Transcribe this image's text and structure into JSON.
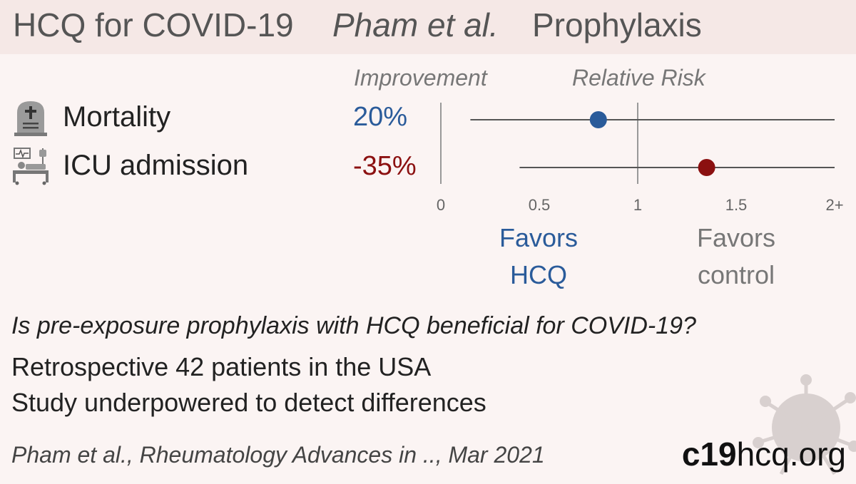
{
  "header": {
    "title": "HCQ for COVID-19",
    "study": "Pham et al.",
    "topic": "Prophylaxis"
  },
  "columns": {
    "improvement": "Improvement",
    "relative_risk": "Relative Risk"
  },
  "outcomes": [
    {
      "icon": "tombstone-icon",
      "label": "Mortality",
      "improvement": "20%"
    },
    {
      "icon": "icu-bed-icon",
      "label": "ICU admission",
      "improvement": "-35%"
    }
  ],
  "chart_data": {
    "type": "forest",
    "xlim": [
      0,
      2
    ],
    "ticks": [
      "0",
      "0.5",
      "1",
      "1.5",
      "2+"
    ],
    "reference_line": 1,
    "rows": [
      {
        "outcome": "Mortality",
        "rr": 0.8,
        "ci": [
          0.15,
          2.0
        ],
        "color": "#2a5b9a"
      },
      {
        "outcome": "ICU admission",
        "rr": 1.35,
        "ci": [
          0.4,
          2.0
        ],
        "color": "#8b1010"
      }
    ],
    "favors_left": [
      "Favors",
      "HCQ"
    ],
    "favors_right": [
      "Favors",
      "control"
    ]
  },
  "colors": {
    "favor_hcq": "#2a5b9a",
    "favor_control": "#8b1010",
    "neutral_text": "#777777",
    "header_bg": "#f5e8e6",
    "background": "#fbf4f3"
  },
  "summary": {
    "question": "Is pre-exposure prophylaxis with HCQ beneficial for COVID-19?",
    "design": "Retrospective 42 patients in the USA",
    "note": "Study underpowered to detect differences"
  },
  "citation": "Pham et al., Rheumatology Advances in .., Mar 2021",
  "brand": {
    "bold": "c19",
    "rest": "hcq.org"
  }
}
